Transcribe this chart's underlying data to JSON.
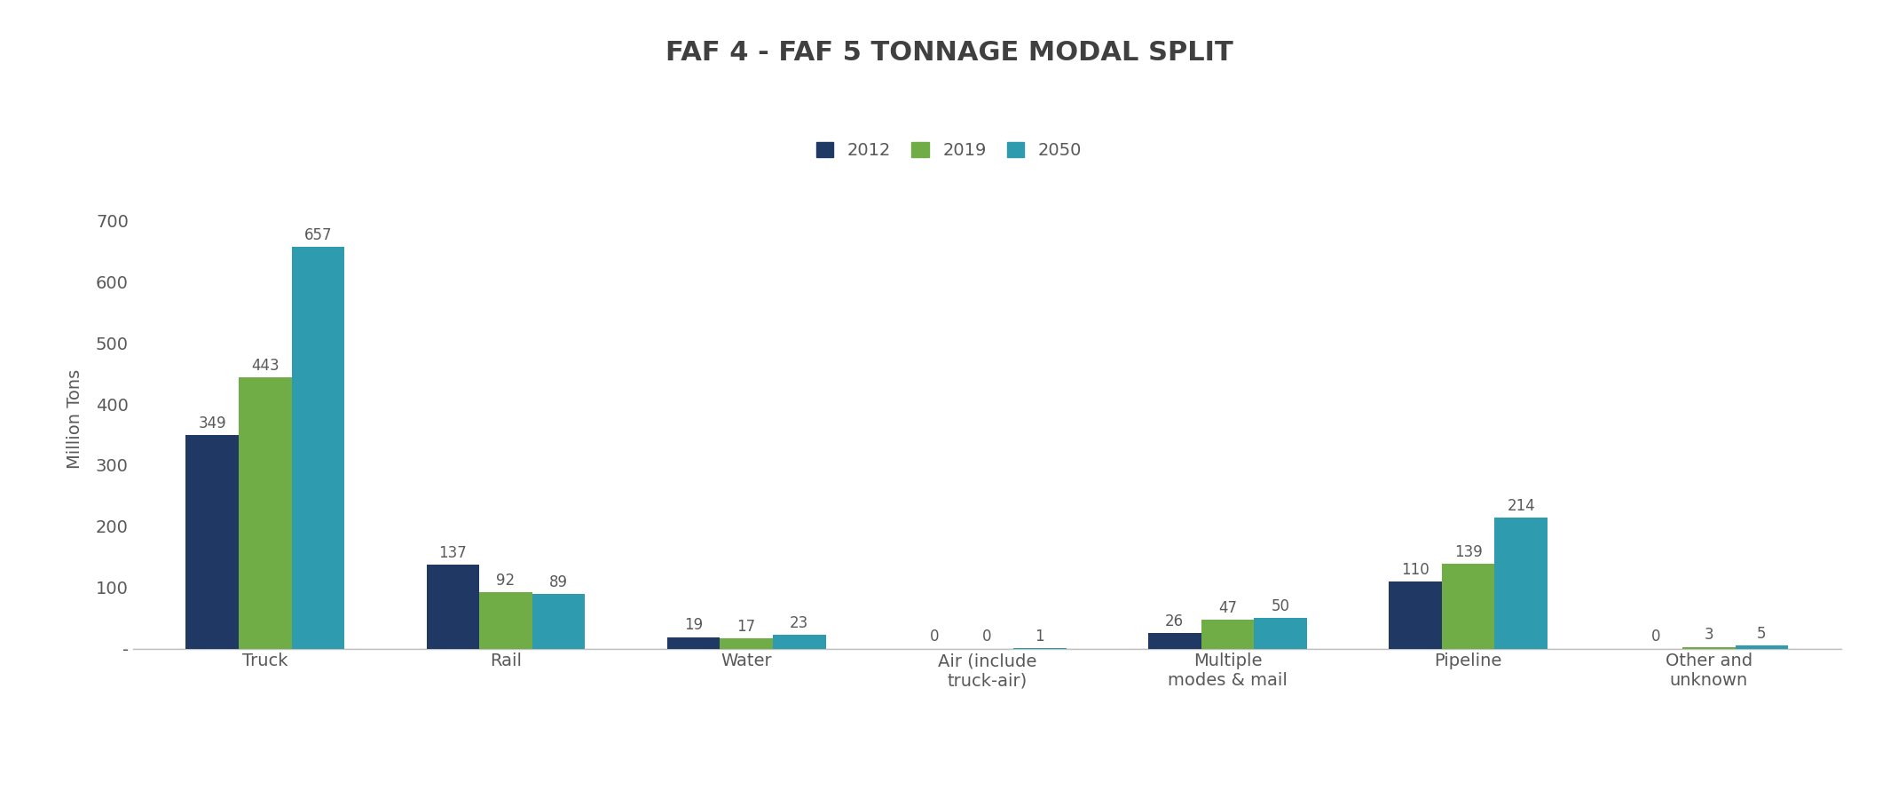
{
  "title": "FAF 4 - FAF 5 TONNAGE MODAL SPLIT",
  "ylabel": "Million Tons",
  "categories": [
    "Truck",
    "Rail",
    "Water",
    "Air (include\ntruck-air)",
    "Multiple\nmodes & mail",
    "Pipeline",
    "Other and\nunknown"
  ],
  "years": [
    "2012",
    "2019",
    "2050"
  ],
  "colors": [
    "#1f3864",
    "#70ad47",
    "#2e9baf"
  ],
  "values": {
    "2012": [
      349,
      137,
      19,
      0,
      26,
      110,
      0
    ],
    "2019": [
      443,
      92,
      17,
      0,
      47,
      139,
      3
    ],
    "2050": [
      657,
      89,
      23,
      1,
      50,
      214,
      5
    ]
  },
  "ylim": [
    0,
    750
  ],
  "yticks": [
    0,
    100,
    200,
    300,
    400,
    500,
    600,
    700
  ],
  "ytick_labels": [
    "-",
    "100",
    "200",
    "300",
    "400",
    "500",
    "600",
    "700"
  ],
  "bar_width": 0.22,
  "figsize": [
    21.39,
    8.91
  ],
  "dpi": 100,
  "title_fontsize": 22,
  "label_fontsize": 14,
  "tick_fontsize": 14,
  "legend_fontsize": 14,
  "annot_fontsize": 12,
  "background_color": "#ffffff",
  "text_color": "#595959",
  "title_color": "#404040"
}
